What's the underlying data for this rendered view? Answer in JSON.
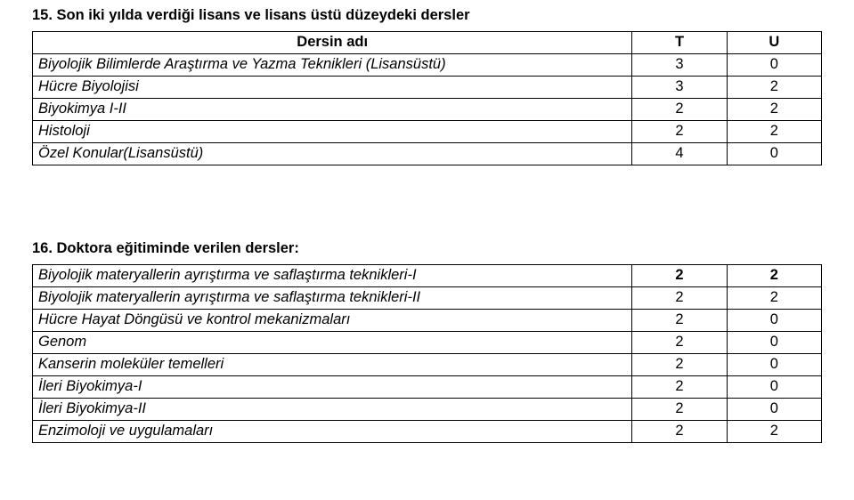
{
  "section1": {
    "heading": "15. Son iki yılda verdiği lisans ve lisans üstü düzeydeki dersler",
    "header": {
      "name": "Dersin adı",
      "t": "T",
      "u": "U"
    },
    "rows": [
      {
        "label": "Biyolojik Bilimlerde Araştırma ve Yazma Teknikleri (Lisansüstü)",
        "t": "3",
        "u": "0"
      },
      {
        "label": "Hücre Biyolojisi",
        "t": "3",
        "u": "2"
      },
      {
        "label": "Biyokimya I-II",
        "t": "2",
        "u": "2"
      },
      {
        "label": "Histoloji",
        "t": "2",
        "u": "2"
      },
      {
        "label": "Özel Konular(Lisansüstü)",
        "t": "4",
        "u": "0"
      }
    ]
  },
  "section2": {
    "heading": "16. Doktora eğitiminde verilen dersler:",
    "rows": [
      {
        "label": "Biyolojik materyallerin ayrıştırma ve saflaştırma teknikleri-I",
        "t": "2",
        "u": "2"
      },
      {
        "label": "Biyolojik materyallerin ayrıştırma ve saflaştırma teknikleri-II",
        "t": "2",
        "u": "2"
      },
      {
        "label": "Hücre Hayat Döngüsü ve kontrol mekanizmaları",
        "t": "2",
        "u": "0"
      },
      {
        "label": "Genom",
        "t": "2",
        "u": "0"
      },
      {
        "label": "Kanserin moleküler temelleri",
        "t": "2",
        "u": "0"
      },
      {
        "label": "İleri Biyokimya-I",
        "t": "2",
        "u": "0"
      },
      {
        "label": "İleri Biyokimya-II",
        "t": "2",
        "u": "0"
      },
      {
        "label": "Enzimoloji ve uygulamaları",
        "t": "2",
        "u": "2"
      }
    ]
  }
}
